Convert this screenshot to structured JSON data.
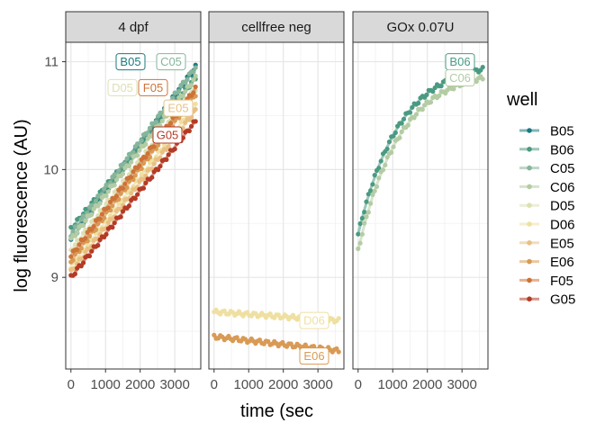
{
  "chart_data": {
    "type": "scatter",
    "xlabel": "time (sec",
    "ylabel": "log fluorescence (AU)",
    "xlim": [
      -150,
      3750
    ],
    "ylim": [
      8.15,
      11.18
    ],
    "xticks": [
      0,
      1000,
      2000,
      3000
    ],
    "yticks": [
      9,
      10,
      11
    ],
    "grid": true,
    "legend": {
      "title": "well",
      "position": "right"
    },
    "panels": [
      {
        "title": "4 dpf",
        "series": [
          {
            "name": "B05",
            "label": "B05",
            "start": 9.35,
            "end": 10.95,
            "k": 0
          },
          {
            "name": "B06",
            "label": "",
            "start": 9.45,
            "end": 10.85,
            "k": 0
          },
          {
            "name": "C05",
            "label": "C05",
            "start": 9.4,
            "end": 10.95,
            "k": 0
          },
          {
            "name": "C06",
            "label": "",
            "start": 9.35,
            "end": 10.85,
            "k": 0
          },
          {
            "name": "D05",
            "label": "D05",
            "start": 9.25,
            "end": 10.75,
            "k": 0
          },
          {
            "name": "D06",
            "label": "",
            "start": 9.1,
            "end": 10.6,
            "k": 0
          },
          {
            "name": "E05",
            "label": "E05",
            "start": 9.05,
            "end": 10.55,
            "k": 0
          },
          {
            "name": "E06",
            "label": "",
            "start": 9.15,
            "end": 10.7,
            "k": 0
          },
          {
            "name": "F05",
            "label": "F05",
            "start": 9.2,
            "end": 10.75,
            "k": 0
          },
          {
            "name": "G05",
            "label": "G05",
            "start": 9.0,
            "end": 10.45,
            "k": 0
          }
        ]
      },
      {
        "title": "cellfree neg",
        "series": [
          {
            "name": "D06",
            "label": "D06",
            "start": 8.68,
            "end": 8.6,
            "k": 0
          },
          {
            "name": "E06",
            "label": "E06",
            "start": 8.45,
            "end": 8.32,
            "k": 0
          }
        ]
      },
      {
        "title": "GOx 0.07U",
        "series": [
          {
            "name": "B06",
            "label": "B06",
            "start": 9.4,
            "end": 10.93,
            "k": 3
          },
          {
            "name": "C06",
            "label": "C06",
            "start": 9.25,
            "end": 10.85,
            "k": 3
          }
        ]
      }
    ]
  },
  "legend_items": [
    {
      "name": "B05",
      "color": "#1a7a80"
    },
    {
      "name": "B06",
      "color": "#4a9a82"
    },
    {
      "name": "C05",
      "color": "#86b59c"
    },
    {
      "name": "C06",
      "color": "#b4cca4"
    },
    {
      "name": "D05",
      "color": "#dde0b4"
    },
    {
      "name": "D06",
      "color": "#efe0a2"
    },
    {
      "name": "E05",
      "color": "#e8c084"
    },
    {
      "name": "E06",
      "color": "#d99a55"
    },
    {
      "name": "F05",
      "color": "#cd7338"
    },
    {
      "name": "G05",
      "color": "#b53a25"
    }
  ]
}
